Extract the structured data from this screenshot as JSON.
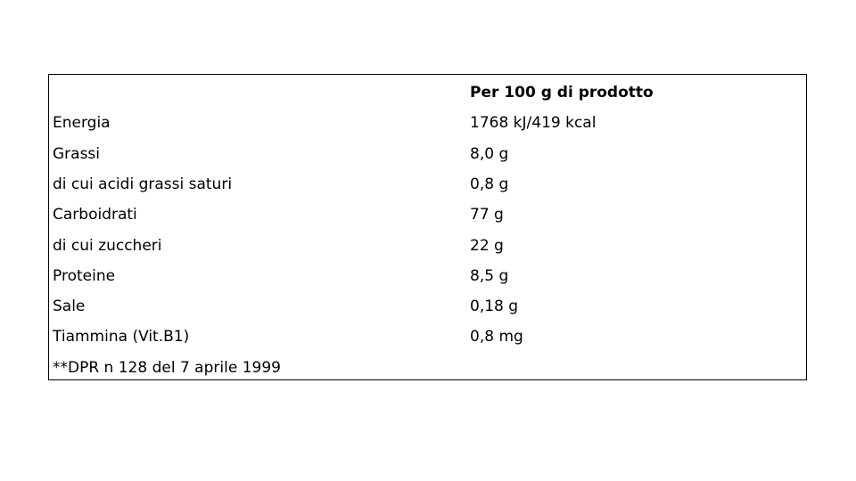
{
  "table": {
    "header": [
      "",
      "Per 100 g di prodotto"
    ],
    "rows": [
      [
        "Energia",
        "1768 kJ/419 kcal"
      ],
      [
        "Grassi",
        "8,0 g"
      ],
      [
        "di cui acidi grassi saturi",
        "0,8 g"
      ],
      [
        "Carboidrati",
        "77 g"
      ],
      [
        "di cui zuccheri",
        "22 g"
      ],
      [
        "Proteine",
        "8,5 g"
      ],
      [
        "Sale",
        "0,18 g"
      ],
      [
        "Tiammina (Vit.B1)",
        "0,8 mg"
      ]
    ],
    "footnote": "**DPR n 128 del 7 aprile 1999"
  }
}
